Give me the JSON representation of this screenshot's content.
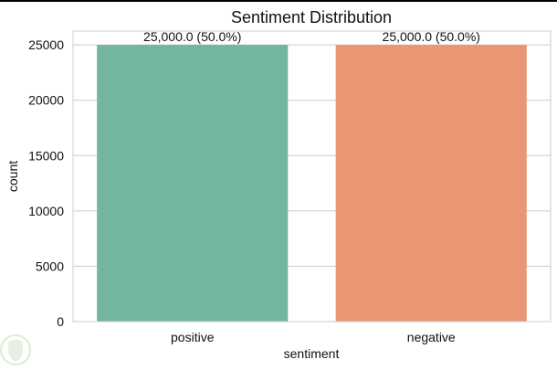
{
  "chart_data": {
    "type": "bar",
    "title": "Sentiment Distribution",
    "xlabel": "sentiment",
    "ylabel": "count",
    "categories": [
      "positive",
      "negative"
    ],
    "values": [
      25000,
      25000
    ],
    "data_labels": [
      "25,000.0 (50.0%)",
      "25,000.0 (50.0%)"
    ],
    "colors": [
      "#73b5a1",
      "#e99674"
    ],
    "ylim": [
      0,
      26250
    ],
    "yticks": [
      0,
      5000,
      10000,
      15000,
      20000,
      25000
    ],
    "grid": "horizontal",
    "legend": "none"
  }
}
